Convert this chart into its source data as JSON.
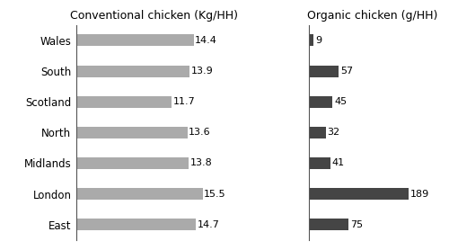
{
  "regions": [
    "Wales",
    "South",
    "Scotland",
    "North",
    "Midlands",
    "London",
    "East"
  ],
  "conventional_values": [
    14.4,
    13.9,
    11.7,
    13.6,
    13.8,
    15.5,
    14.7
  ],
  "organic_values": [
    9,
    57,
    45,
    32,
    41,
    189,
    75
  ],
  "conventional_color": "#aaaaaa",
  "organic_color": "#454545",
  "conventional_title": "Conventional chicken (Kg/HH)",
  "organic_title": "Organic chicken (g/HH)",
  "conventional_xlim": [
    0,
    19
  ],
  "organic_xlim": [
    0,
    240
  ],
  "background_color": "#ffffff",
  "title_fontsize": 9,
  "label_fontsize": 8.5,
  "value_fontsize": 8,
  "bar_height": 0.38
}
